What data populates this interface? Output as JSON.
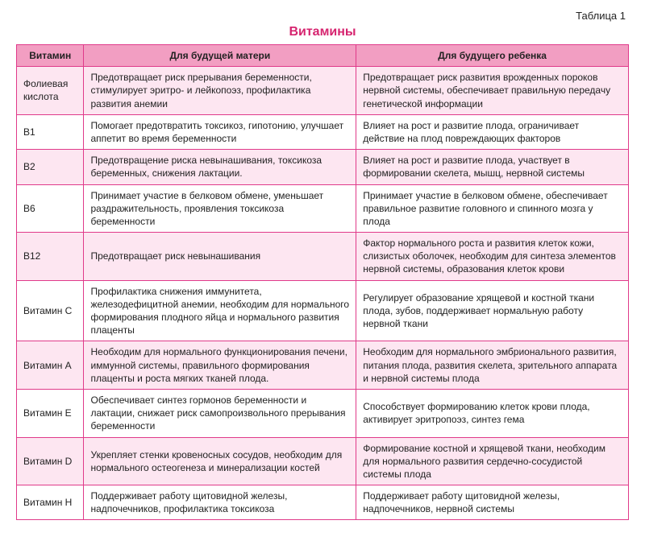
{
  "label": "Таблица 1",
  "title": "Витамины",
  "title_color": "#d6246f",
  "header_bg": "#f29ec2",
  "row_alt_bg": "#fde6f1",
  "row_bg": "#ffffff",
  "border_color": "#e03a8a",
  "columns": [
    "Витамин",
    "Для будущей матери",
    "Для будущего ребенка"
  ],
  "col_widths_pct": [
    11,
    44.5,
    44.5
  ],
  "font_size_pt": 12,
  "rows": [
    {
      "vitamin": "Фолиевая кислота",
      "mother": "Предотвращает риск прерывания беременности, стимулирует эритро- и лейкопоэз, профилактика развития анемии",
      "child": "Предотвращает риск развития врожденных пороков нервной системы, обеспечивает правильную передачу генетической информации"
    },
    {
      "vitamin": "В1",
      "mother": "Помогает предотвратить токсикоз, гипотонию, улучшает аппетит во время беременности",
      "child": "Влияет на рост и развитие плода, ограничивает действие на плод повреждающих факторов"
    },
    {
      "vitamin": "В2",
      "mother": "Предотвращение риска невынашивания, токсикоза беременных, снижения лактации.",
      "child": "Влияет на рост и развитие плода, участвует в формировании скелета, мышц, нервной системы"
    },
    {
      "vitamin": "В6",
      "mother": "Принимает участие в белковом обмене, уменьшает раздражительность, проявления токсикоза беременности",
      "child": "Принимает участие в белковом обмене, обеспечивает правильное развитие головного и спинного мозга у плода"
    },
    {
      "vitamin": "В12",
      "mother": "Предотвращает риск невынашивания",
      "child": "Фактор нормального роста и развития клеток кожи, слизистых оболочек, необходим для синтеза элементов нервной системы, образования клеток крови"
    },
    {
      "vitamin": "Витамин С",
      "mother": "Профилактика снижения иммунитета, железодефицитной анемии, необходим для нормального формирования плодного яйца и нормального развития плаценты",
      "child": "Регулирует образование хрящевой и костной ткани плода, зубов, поддерживает нормальную работу нервной ткани"
    },
    {
      "vitamin": "Витамин А",
      "mother": "Необходим для нормального функционирования печени, иммунной системы, правильного формирования плаценты и роста мягких тканей плода.",
      "child": "Необходим для нормального эмбрионального развития, питания плода, развития скелета, зрительного аппарата и нервной системы плода"
    },
    {
      "vitamin": "Витамин Е",
      "mother": "Обеспечивает синтез гормонов беременности и лактации, снижает риск самопроизвольного прерывания беременности",
      "child": "Способствует формированию клеток крови плода, активирует эритропоэз, синтез гема"
    },
    {
      "vitamin": "Витамин D",
      "mother": "Укрепляет стенки кровеносных сосудов, необходим для нормального остеогенеза и минерализации костей",
      "child": "Формирование костной и хрящевой ткани, необходим для нормального развития сердечно-сосудистой системы плода"
    },
    {
      "vitamin": "Витамин Н",
      "mother": "Поддерживает работу щитовидной железы, надпочечников, профилактика токсикоза",
      "child": "Поддерживает работу щитовидной железы, надпочечников, нервной системы"
    }
  ]
}
